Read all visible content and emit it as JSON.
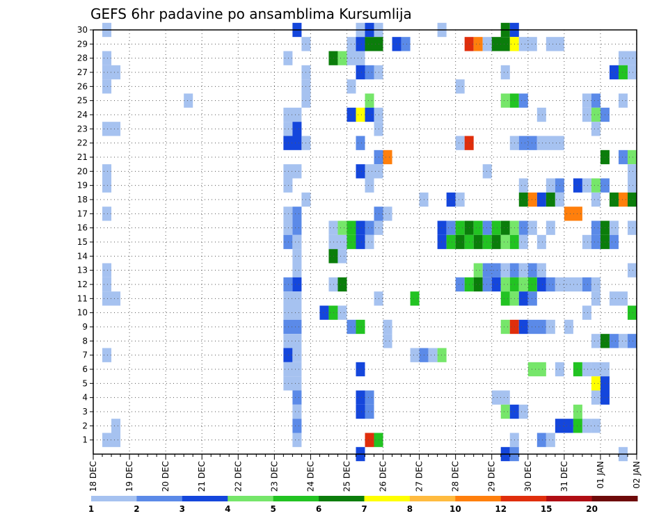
{
  "chart_data": {
    "type": "heatmap",
    "title": "GEFS 6hr padavine po ansamblima Kursumlija",
    "xlabel": "",
    "ylabel": "",
    "x_tick_labels": [
      "18 DEC",
      "19 DEC",
      "20 DEC",
      "21 DEC",
      "22 DEC",
      "23 DEC",
      "24 DEC",
      "25 DEC",
      "26 DEC",
      "27 DEC",
      "28 DEC",
      "29 DEC",
      "30 DEC",
      "31 DEC",
      "01 JAN",
      "02 JAN"
    ],
    "y_tick_labels": [
      "1",
      "2",
      "3",
      "4",
      "5",
      "6",
      "7",
      "8",
      "9",
      "10",
      "11",
      "12",
      "13",
      "14",
      "15",
      "16",
      "17",
      "18",
      "19",
      "20",
      "21",
      "22",
      "23",
      "24",
      "25",
      "26",
      "27",
      "28",
      "29",
      "30"
    ],
    "x_range_hours": [
      0,
      360
    ],
    "y_range": [
      0,
      30
    ],
    "grid": true,
    "colorbar": {
      "levels": [
        1,
        2,
        3,
        4,
        5,
        6,
        7,
        8,
        10,
        12,
        15,
        20
      ],
      "colors": [
        "#a6c2f0",
        "#5b8ae8",
        "#1446dc",
        "#76e66a",
        "#22c322",
        "#0b7d0b",
        "#ffff00",
        "#ffbb3f",
        "#ff7f0c",
        "#e02e0c",
        "#b00e14",
        "#6e0a0a"
      ]
    },
    "cells_note": "each cell: [member, start_hour, end_hour, color_level_index]",
    "cells": [
      [
        30,
        6,
        12,
        0
      ],
      [
        30,
        132,
        138,
        2
      ],
      [
        30,
        174,
        180,
        0
      ],
      [
        30,
        180,
        186,
        2
      ],
      [
        30,
        186,
        192,
        0
      ],
      [
        30,
        228,
        234,
        0
      ],
      [
        30,
        270,
        276,
        5
      ],
      [
        30,
        276,
        282,
        2
      ],
      [
        29,
        138,
        144,
        0
      ],
      [
        29,
        168,
        174,
        0
      ],
      [
        29,
        174,
        180,
        2
      ],
      [
        29,
        180,
        192,
        5
      ],
      [
        29,
        198,
        204,
        2
      ],
      [
        29,
        204,
        210,
        1
      ],
      [
        29,
        246,
        252,
        9
      ],
      [
        29,
        252,
        258,
        8
      ],
      [
        29,
        258,
        264,
        0
      ],
      [
        29,
        264,
        276,
        5
      ],
      [
        29,
        276,
        282,
        6
      ],
      [
        29,
        282,
        294,
        0
      ],
      [
        29,
        300,
        312,
        0
      ],
      [
        28,
        6,
        12,
        0
      ],
      [
        28,
        126,
        132,
        0
      ],
      [
        28,
        156,
        162,
        5
      ],
      [
        28,
        162,
        168,
        3
      ],
      [
        28,
        168,
        180,
        0
      ],
      [
        28,
        348,
        360,
        0
      ],
      [
        27,
        6,
        18,
        0
      ],
      [
        27,
        138,
        144,
        0
      ],
      [
        27,
        174,
        180,
        2
      ],
      [
        27,
        180,
        186,
        1
      ],
      [
        27,
        186,
        192,
        0
      ],
      [
        27,
        270,
        276,
        0
      ],
      [
        27,
        342,
        348,
        2
      ],
      [
        27,
        348,
        354,
        4
      ],
      [
        27,
        354,
        360,
        0
      ],
      [
        26,
        6,
        12,
        0
      ],
      [
        26,
        138,
        144,
        0
      ],
      [
        26,
        168,
        174,
        0
      ],
      [
        26,
        240,
        246,
        0
      ],
      [
        25,
        60,
        66,
        0
      ],
      [
        25,
        138,
        144,
        0
      ],
      [
        25,
        180,
        186,
        3
      ],
      [
        25,
        270,
        276,
        3
      ],
      [
        25,
        276,
        282,
        4
      ],
      [
        25,
        282,
        288,
        1
      ],
      [
        25,
        324,
        330,
        0
      ],
      [
        25,
        330,
        336,
        1
      ],
      [
        25,
        348,
        354,
        0
      ],
      [
        24,
        126,
        138,
        0
      ],
      [
        24,
        168,
        174,
        2
      ],
      [
        24,
        174,
        180,
        6
      ],
      [
        24,
        180,
        186,
        2
      ],
      [
        24,
        186,
        192,
        0
      ],
      [
        24,
        294,
        300,
        0
      ],
      [
        24,
        324,
        330,
        0
      ],
      [
        24,
        330,
        336,
        3
      ],
      [
        24,
        336,
        342,
        1
      ],
      [
        23,
        6,
        18,
        0
      ],
      [
        23,
        126,
        132,
        0
      ],
      [
        23,
        132,
        138,
        2
      ],
      [
        23,
        186,
        192,
        0
      ],
      [
        23,
        330,
        336,
        0
      ],
      [
        22,
        126,
        138,
        2
      ],
      [
        22,
        138,
        144,
        0
      ],
      [
        22,
        174,
        180,
        1
      ],
      [
        22,
        240,
        246,
        0
      ],
      [
        22,
        246,
        252,
        9
      ],
      [
        22,
        276,
        282,
        0
      ],
      [
        22,
        282,
        294,
        1
      ],
      [
        22,
        294,
        312,
        0
      ],
      [
        21,
        186,
        192,
        1
      ],
      [
        21,
        192,
        198,
        8
      ],
      [
        21,
        336,
        342,
        5
      ],
      [
        21,
        348,
        354,
        1
      ],
      [
        21,
        354,
        360,
        3
      ],
      [
        21,
        360,
        366,
        0
      ],
      [
        20,
        6,
        12,
        0
      ],
      [
        20,
        126,
        138,
        0
      ],
      [
        20,
        174,
        180,
        2
      ],
      [
        20,
        180,
        192,
        0
      ],
      [
        20,
        258,
        264,
        0
      ],
      [
        20,
        354,
        366,
        0
      ],
      [
        19,
        6,
        12,
        0
      ],
      [
        19,
        126,
        132,
        0
      ],
      [
        19,
        180,
        186,
        0
      ],
      [
        19,
        282,
        288,
        0
      ],
      [
        19,
        300,
        306,
        0
      ],
      [
        19,
        306,
        312,
        1
      ],
      [
        19,
        318,
        324,
        2
      ],
      [
        19,
        324,
        330,
        0
      ],
      [
        19,
        330,
        336,
        3
      ],
      [
        19,
        336,
        342,
        1
      ],
      [
        19,
        354,
        366,
        0
      ],
      [
        18,
        138,
        144,
        0
      ],
      [
        18,
        216,
        222,
        0
      ],
      [
        18,
        234,
        240,
        2
      ],
      [
        18,
        240,
        246,
        0
      ],
      [
        18,
        282,
        288,
        5
      ],
      [
        18,
        288,
        294,
        8
      ],
      [
        18,
        294,
        300,
        2
      ],
      [
        18,
        300,
        306,
        5
      ],
      [
        18,
        306,
        312,
        0
      ],
      [
        18,
        330,
        336,
        0
      ],
      [
        18,
        342,
        348,
        5
      ],
      [
        18,
        348,
        354,
        8
      ],
      [
        18,
        354,
        360,
        5
      ],
      [
        17,
        6,
        12,
        0
      ],
      [
        17,
        126,
        132,
        0
      ],
      [
        17,
        132,
        138,
        1
      ],
      [
        17,
        186,
        192,
        1
      ],
      [
        17,
        192,
        198,
        0
      ],
      [
        17,
        312,
        324,
        8
      ],
      [
        17,
        360,
        366,
        0
      ],
      [
        16,
        126,
        132,
        0
      ],
      [
        16,
        132,
        138,
        1
      ],
      [
        16,
        156,
        162,
        0
      ],
      [
        16,
        162,
        168,
        3
      ],
      [
        16,
        168,
        174,
        4
      ],
      [
        16,
        174,
        180,
        2
      ],
      [
        16,
        180,
        186,
        1
      ],
      [
        16,
        186,
        192,
        0
      ],
      [
        16,
        228,
        234,
        2
      ],
      [
        16,
        234,
        240,
        1
      ],
      [
        16,
        240,
        246,
        4
      ],
      [
        16,
        246,
        252,
        5
      ],
      [
        16,
        252,
        258,
        4
      ],
      [
        16,
        258,
        264,
        1
      ],
      [
        16,
        264,
        270,
        4
      ],
      [
        16,
        270,
        276,
        5
      ],
      [
        16,
        276,
        282,
        3
      ],
      [
        16,
        282,
        288,
        1
      ],
      [
        16,
        288,
        294,
        0
      ],
      [
        16,
        300,
        306,
        0
      ],
      [
        16,
        330,
        336,
        1
      ],
      [
        16,
        336,
        342,
        5
      ],
      [
        16,
        342,
        348,
        0
      ],
      [
        16,
        354,
        360,
        0
      ],
      [
        16,
        360,
        366,
        1
      ],
      [
        15,
        126,
        132,
        1
      ],
      [
        15,
        132,
        138,
        0
      ],
      [
        15,
        156,
        168,
        0
      ],
      [
        15,
        168,
        174,
        4
      ],
      [
        15,
        174,
        180,
        2
      ],
      [
        15,
        180,
        186,
        0
      ],
      [
        15,
        228,
        234,
        2
      ],
      [
        15,
        234,
        240,
        4
      ],
      [
        15,
        240,
        246,
        5
      ],
      [
        15,
        246,
        252,
        4
      ],
      [
        15,
        252,
        258,
        5
      ],
      [
        15,
        258,
        264,
        4
      ],
      [
        15,
        264,
        270,
        5
      ],
      [
        15,
        270,
        276,
        3
      ],
      [
        15,
        276,
        282,
        4
      ],
      [
        15,
        282,
        288,
        0
      ],
      [
        15,
        294,
        300,
        0
      ],
      [
        15,
        324,
        330,
        0
      ],
      [
        15,
        330,
        336,
        1
      ],
      [
        15,
        336,
        342,
        5
      ],
      [
        15,
        342,
        348,
        1
      ],
      [
        14,
        132,
        138,
        0
      ],
      [
        14,
        156,
        162,
        5
      ],
      [
        14,
        162,
        168,
        0
      ],
      [
        13,
        6,
        12,
        0
      ],
      [
        13,
        132,
        138,
        0
      ],
      [
        13,
        252,
        258,
        3
      ],
      [
        13,
        258,
        270,
        1
      ],
      [
        13,
        270,
        276,
        0
      ],
      [
        13,
        276,
        282,
        1
      ],
      [
        13,
        282,
        288,
        0
      ],
      [
        13,
        288,
        294,
        1
      ],
      [
        13,
        294,
        300,
        0
      ],
      [
        13,
        354,
        360,
        0
      ],
      [
        12,
        6,
        12,
        0
      ],
      [
        12,
        126,
        132,
        1
      ],
      [
        12,
        132,
        138,
        2
      ],
      [
        12,
        156,
        162,
        0
      ],
      [
        12,
        162,
        168,
        5
      ],
      [
        12,
        240,
        246,
        1
      ],
      [
        12,
        246,
        252,
        4
      ],
      [
        12,
        252,
        258,
        5
      ],
      [
        12,
        258,
        264,
        1
      ],
      [
        12,
        264,
        270,
        2
      ],
      [
        12,
        270,
        276,
        3
      ],
      [
        12,
        276,
        282,
        4
      ],
      [
        12,
        282,
        288,
        3
      ],
      [
        12,
        288,
        294,
        4
      ],
      [
        12,
        294,
        300,
        2
      ],
      [
        12,
        300,
        306,
        1
      ],
      [
        12,
        306,
        324,
        0
      ],
      [
        12,
        324,
        330,
        1
      ],
      [
        12,
        330,
        336,
        0
      ],
      [
        11,
        6,
        18,
        0
      ],
      [
        11,
        126,
        138,
        0
      ],
      [
        11,
        186,
        192,
        0
      ],
      [
        11,
        210,
        216,
        4
      ],
      [
        11,
        270,
        276,
        4
      ],
      [
        11,
        276,
        282,
        3
      ],
      [
        11,
        282,
        288,
        2
      ],
      [
        11,
        288,
        294,
        1
      ],
      [
        11,
        330,
        336,
        0
      ],
      [
        11,
        342,
        354,
        0
      ],
      [
        10,
        126,
        138,
        0
      ],
      [
        10,
        150,
        156,
        2
      ],
      [
        10,
        156,
        162,
        4
      ],
      [
        10,
        162,
        168,
        0
      ],
      [
        10,
        324,
        330,
        0
      ],
      [
        10,
        354,
        360,
        4
      ],
      [
        9,
        126,
        138,
        1
      ],
      [
        9,
        168,
        174,
        1
      ],
      [
        9,
        174,
        180,
        4
      ],
      [
        9,
        192,
        198,
        0
      ],
      [
        9,
        270,
        276,
        3
      ],
      [
        9,
        276,
        282,
        9
      ],
      [
        9,
        282,
        288,
        2
      ],
      [
        9,
        288,
        300,
        1
      ],
      [
        9,
        300,
        306,
        0
      ],
      [
        9,
        312,
        318,
        0
      ],
      [
        8,
        126,
        138,
        0
      ],
      [
        8,
        192,
        198,
        0
      ],
      [
        8,
        330,
        336,
        0
      ],
      [
        8,
        336,
        342,
        5
      ],
      [
        8,
        342,
        348,
        1
      ],
      [
        8,
        348,
        354,
        0
      ],
      [
        8,
        354,
        360,
        1
      ],
      [
        8,
        360,
        366,
        0
      ],
      [
        7,
        6,
        12,
        0
      ],
      [
        7,
        126,
        132,
        2
      ],
      [
        7,
        132,
        138,
        0
      ],
      [
        7,
        210,
        216,
        0
      ],
      [
        7,
        216,
        222,
        1
      ],
      [
        7,
        222,
        228,
        0
      ],
      [
        7,
        228,
        234,
        3
      ],
      [
        6,
        126,
        138,
        0
      ],
      [
        6,
        174,
        180,
        2
      ],
      [
        6,
        288,
        300,
        3
      ],
      [
        6,
        306,
        312,
        0
      ],
      [
        6,
        318,
        324,
        4
      ],
      [
        6,
        324,
        330,
        0
      ],
      [
        6,
        330,
        342,
        0
      ],
      [
        5,
        126,
        138,
        0
      ],
      [
        5,
        330,
        336,
        6
      ],
      [
        5,
        336,
        342,
        2
      ],
      [
        4,
        132,
        138,
        1
      ],
      [
        4,
        174,
        180,
        2
      ],
      [
        4,
        180,
        186,
        1
      ],
      [
        4,
        264,
        276,
        0
      ],
      [
        4,
        330,
        336,
        0
      ],
      [
        4,
        336,
        342,
        2
      ],
      [
        3,
        132,
        138,
        0
      ],
      [
        3,
        174,
        180,
        2
      ],
      [
        3,
        180,
        186,
        1
      ],
      [
        3,
        270,
        276,
        3
      ],
      [
        3,
        276,
        282,
        2
      ],
      [
        3,
        282,
        288,
        0
      ],
      [
        3,
        318,
        324,
        3
      ],
      [
        2,
        12,
        18,
        0
      ],
      [
        2,
        132,
        138,
        1
      ],
      [
        2,
        306,
        318,
        2
      ],
      [
        2,
        318,
        324,
        4
      ],
      [
        2,
        324,
        330,
        0
      ],
      [
        2,
        330,
        336,
        0
      ],
      [
        1,
        6,
        18,
        0
      ],
      [
        1,
        132,
        138,
        0
      ],
      [
        1,
        180,
        186,
        9
      ],
      [
        1,
        186,
        192,
        4
      ],
      [
        1,
        276,
        282,
        0
      ],
      [
        1,
        294,
        300,
        1
      ],
      [
        1,
        300,
        306,
        0
      ],
      [
        0,
        174,
        180,
        2
      ],
      [
        0,
        270,
        276,
        2
      ],
      [
        0,
        276,
        282,
        1
      ],
      [
        0,
        348,
        354,
        0
      ]
    ]
  }
}
